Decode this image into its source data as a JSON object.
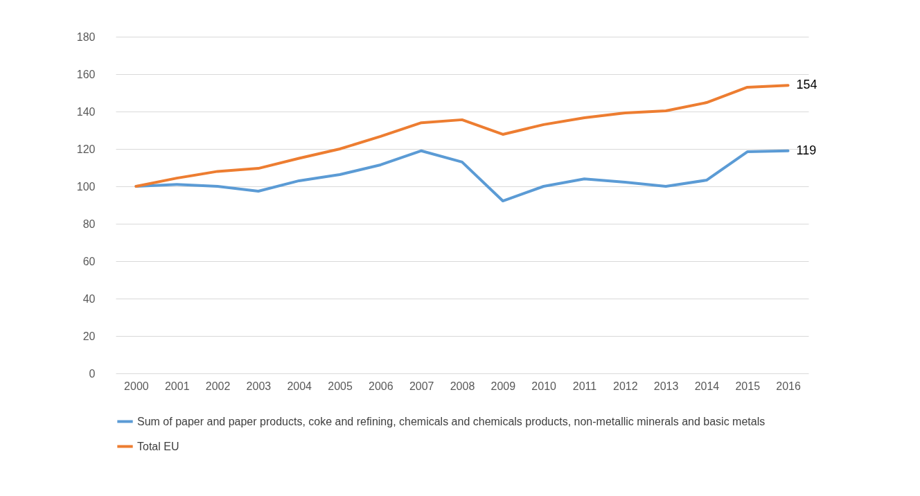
{
  "chart_data": {
    "type": "line",
    "categories": [
      "2000",
      "2001",
      "2002",
      "2003",
      "2004",
      "2005",
      "2006",
      "2007",
      "2008",
      "2009",
      "2010",
      "2011",
      "2012",
      "2013",
      "2014",
      "2015",
      "2016"
    ],
    "series": [
      {
        "name": "Sum of  paper and paper products, coke and refining, chemicals and chemicals products, non-metallic minerals and basic metals",
        "color": "#5b9bd5",
        "values": [
          100,
          101,
          100,
          97.4,
          103,
          106.3,
          111.5,
          119,
          113,
          92.2,
          100,
          104,
          102.2,
          100,
          103.3,
          118.5,
          119
        ]
      },
      {
        "name": "Total EU",
        "color": "#ed7d31",
        "values": [
          100,
          104.4,
          108,
          109.6,
          115,
          120,
          126.7,
          134,
          135.6,
          127.8,
          133,
          136.7,
          139.3,
          140.4,
          144.8,
          153,
          154
        ]
      }
    ],
    "annotations": [
      {
        "text": "154",
        "x": "2016",
        "y": 154
      },
      {
        "text": "119",
        "x": "2016",
        "y": 119
      }
    ],
    "ylim": [
      0,
      180
    ],
    "yticks": [
      0,
      20,
      40,
      60,
      80,
      100,
      120,
      140,
      160,
      180
    ],
    "grid": "y",
    "legend": "bottom",
    "marker": "none",
    "line_style": "solid"
  }
}
